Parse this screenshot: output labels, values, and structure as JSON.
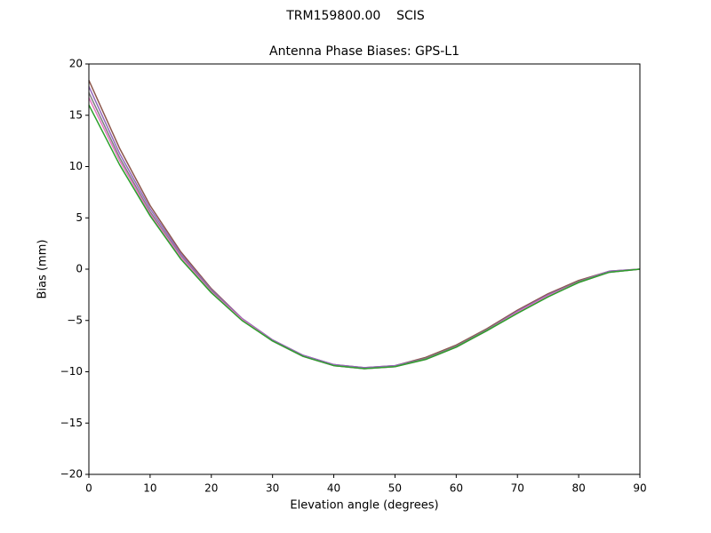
{
  "chart_data": {
    "type": "line",
    "title": "TRM159800.00    SCIS",
    "subtitle": "Antenna Phase Biases: GPS-L1",
    "x_label": "Elevation angle (degrees)",
    "y_label": "Bias (mm)",
    "x": [
      0,
      5,
      10,
      15,
      20,
      25,
      30,
      35,
      40,
      45,
      50,
      55,
      60,
      65,
      70,
      75,
      80,
      85,
      90
    ],
    "series": [
      {
        "color": "#8c564b",
        "values": [
          18.4,
          11.8,
          6.2,
          1.7,
          -1.9,
          -4.8,
          -6.9,
          -8.4,
          -9.3,
          -9.6,
          -9.4,
          -8.6,
          -7.4,
          -5.8,
          -4.0,
          -2.4,
          -1.1,
          -0.2,
          0
        ]
      },
      {
        "color": "#9467bd",
        "values": [
          17.8,
          11.3,
          5.9,
          1.5,
          -2.0,
          -4.8,
          -6.9,
          -8.4,
          -9.3,
          -9.6,
          -9.4,
          -8.7,
          -7.5,
          -5.9,
          -4.1,
          -2.5,
          -1.2,
          -0.2,
          0
        ]
      },
      {
        "color": "#7f7f7f",
        "values": [
          17.2,
          10.9,
          5.6,
          1.3,
          -2.1,
          -4.9,
          -7.0,
          -8.5,
          -9.4,
          -9.7,
          -9.5,
          -8.7,
          -7.5,
          -5.9,
          -4.2,
          -2.6,
          -1.2,
          -0.3,
          0
        ]
      },
      {
        "color": "#e377c2",
        "values": [
          16.7,
          10.6,
          5.4,
          1.2,
          -2.2,
          -4.9,
          -7.0,
          -8.5,
          -9.4,
          -9.7,
          -9.5,
          -8.8,
          -7.6,
          -6.0,
          -4.2,
          -2.6,
          -1.3,
          -0.3,
          0
        ]
      },
      {
        "color": "#2ca02c",
        "values": [
          16.0,
          10.2,
          5.2,
          1.0,
          -2.3,
          -5.0,
          -7.0,
          -8.5,
          -9.4,
          -9.7,
          -9.5,
          -8.8,
          -7.6,
          -6.0,
          -4.3,
          -2.7,
          -1.3,
          -0.3,
          0
        ]
      }
    ],
    "xlim": [
      0,
      90
    ],
    "xticks": [
      0,
      10,
      20,
      30,
      40,
      50,
      60,
      70,
      80,
      90
    ],
    "ylim": [
      -20,
      20
    ],
    "yticks": [
      {
        "value": -20,
        "label": "−20"
      },
      {
        "value": -15,
        "label": "−15"
      },
      {
        "value": -10,
        "label": "−10"
      },
      {
        "value": -5,
        "label": "−5"
      },
      0,
      5,
      10,
      15,
      20
    ],
    "grid": false
  }
}
